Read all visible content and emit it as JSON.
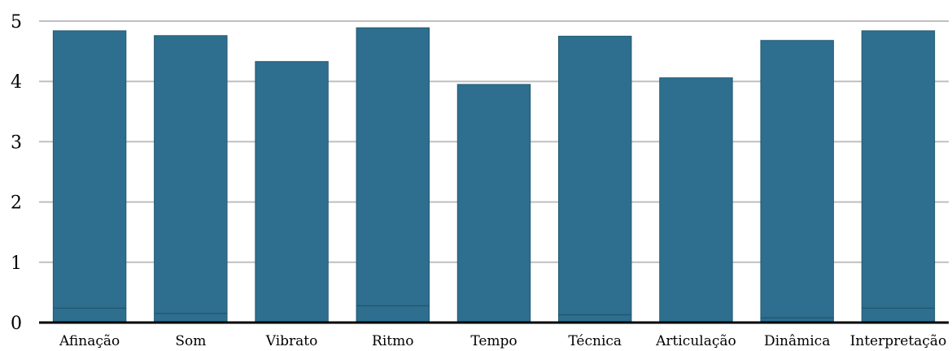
{
  "chart_data": {
    "type": "bar",
    "categories": [
      "Afinação",
      "Som",
      "Vibrato",
      "Ritmo",
      "Tempo",
      "Técnica",
      "Articulação",
      "Dinâmica",
      "Interpretação"
    ],
    "values": [
      4.84,
      4.76,
      4.33,
      4.89,
      3.95,
      4.75,
      4.06,
      4.68,
      4.84
    ],
    "inner_line_values": [
      0.24,
      0.15,
      0,
      0.28,
      0,
      0.13,
      0,
      0.08,
      0.24
    ],
    "ylim": [
      0,
      5
    ],
    "yticks": [
      "0",
      "1",
      "2",
      "3",
      "4",
      "5"
    ],
    "grid": true,
    "bar_color": "#2e6e8e",
    "gridline_color": "#bfbfbf",
    "title": "",
    "xlabel": "",
    "ylabel": ""
  }
}
